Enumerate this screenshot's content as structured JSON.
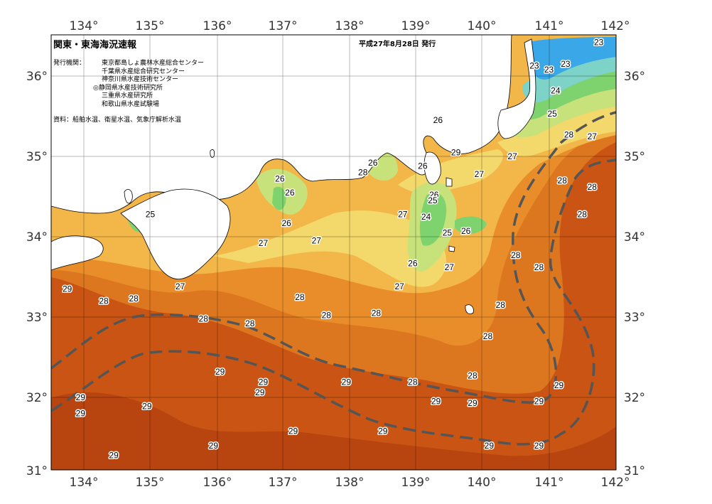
{
  "header": {
    "title": "関東・東海海況速報",
    "issue_date": "平成27年8月28日 発行",
    "issuer_label": "発行機関：",
    "issuers": [
      "東京都島しょ農林水産総合センター",
      "千葉県水産総合研究センター",
      "神奈川県水産技術センター",
      "◎静岡県水産技術研究所",
      "三重県水産研究所",
      "和歌山県水産試験場"
    ],
    "source": "資料：船舶水温、衛星水温、気象庁解析水温"
  },
  "axes": {
    "lon_labels": [
      "134°",
      "135°",
      "136°",
      "137°",
      "138°",
      "139°",
      "140°",
      "141°",
      "142°"
    ],
    "lat_labels": [
      "36°",
      "35°",
      "34°",
      "33°",
      "32°",
      "31°"
    ]
  },
  "colors": {
    "t23": "#3aa7e8",
    "t24": "#7dd3c8",
    "t25": "#7ed36f",
    "t26": "#c7e27a",
    "t27": "#f3d86b",
    "t27b": "#f2b649",
    "t28": "#e88d2a",
    "t28b": "#dc7720",
    "t29": "#c95414",
    "t29b": "#b84410",
    "land": "#ffffff",
    "kuroshio": "#555555"
  },
  "isotherm_labels": [
    {
      "t": "23",
      "lon": 141.75,
      "lat": 36.42
    },
    {
      "t": "23",
      "lon": 140.78,
      "lat": 36.13
    },
    {
      "t": "23",
      "lon": 141.0,
      "lat": 36.08
    },
    {
      "t": "23",
      "lon": 141.25,
      "lat": 36.15
    },
    {
      "t": "24",
      "lon": 141.1,
      "lat": 35.82
    },
    {
      "t": "25",
      "lon": 141.05,
      "lat": 35.53
    },
    {
      "t": "26",
      "lon": 139.33,
      "lat": 35.45
    },
    {
      "t": "28",
      "lon": 141.3,
      "lat": 35.27
    },
    {
      "t": "27",
      "lon": 141.65,
      "lat": 35.25
    },
    {
      "t": "29",
      "lon": 139.6,
      "lat": 35.05
    },
    {
      "t": "27",
      "lon": 140.45,
      "lat": 35.0
    },
    {
      "t": "26",
      "lon": 138.35,
      "lat": 34.92
    },
    {
      "t": "28",
      "lon": 138.2,
      "lat": 34.8
    },
    {
      "t": "26",
      "lon": 139.1,
      "lat": 34.88
    },
    {
      "t": "27",
      "lon": 139.95,
      "lat": 34.78
    },
    {
      "t": "26",
      "lon": 136.95,
      "lat": 34.72
    },
    {
      "t": "26",
      "lon": 137.1,
      "lat": 34.55
    },
    {
      "t": "28",
      "lon": 141.2,
      "lat": 34.7
    },
    {
      "t": "28",
      "lon": 141.65,
      "lat": 34.62
    },
    {
      "t": "26",
      "lon": 139.27,
      "lat": 34.52
    },
    {
      "t": "25",
      "lon": 139.25,
      "lat": 34.45
    },
    {
      "t": "27",
      "lon": 138.8,
      "lat": 34.28
    },
    {
      "t": "24",
      "lon": 139.15,
      "lat": 34.25
    },
    {
      "t": "28",
      "lon": 141.5,
      "lat": 34.28
    },
    {
      "t": "25",
      "lon": 135.0,
      "lat": 34.28
    },
    {
      "t": "26",
      "lon": 137.05,
      "lat": 34.17
    },
    {
      "t": "25",
      "lon": 139.47,
      "lat": 34.05
    },
    {
      "t": "26",
      "lon": 139.75,
      "lat": 34.07
    },
    {
      "t": "27",
      "lon": 136.7,
      "lat": 33.92
    },
    {
      "t": "27",
      "lon": 137.5,
      "lat": 33.95
    },
    {
      "t": "28",
      "lon": 140.5,
      "lat": 33.77
    },
    {
      "t": "26",
      "lon": 138.95,
      "lat": 33.67
    },
    {
      "t": "27",
      "lon": 139.5,
      "lat": 33.62
    },
    {
      "t": "28",
      "lon": 140.85,
      "lat": 33.62
    },
    {
      "t": "27",
      "lon": 138.75,
      "lat": 33.38
    },
    {
      "t": "29",
      "lon": 133.75,
      "lat": 33.35
    },
    {
      "t": "27",
      "lon": 135.45,
      "lat": 33.38
    },
    {
      "t": "28",
      "lon": 137.25,
      "lat": 33.25
    },
    {
      "t": "28",
      "lon": 134.3,
      "lat": 33.2
    },
    {
      "t": "28",
      "lon": 134.75,
      "lat": 33.23
    },
    {
      "t": "28",
      "lon": 140.27,
      "lat": 33.15
    },
    {
      "t": "28",
      "lon": 137.65,
      "lat": 33.02
    },
    {
      "t": "28",
      "lon": 138.4,
      "lat": 33.05
    },
    {
      "t": "28",
      "lon": 135.8,
      "lat": 32.98
    },
    {
      "t": "28",
      "lon": 136.5,
      "lat": 32.92
    },
    {
      "t": "28",
      "lon": 140.08,
      "lat": 32.76
    },
    {
      "t": "29",
      "lon": 136.05,
      "lat": 32.32
    },
    {
      "t": "28",
      "lon": 139.85,
      "lat": 32.27
    },
    {
      "t": "29",
      "lon": 136.7,
      "lat": 32.19
    },
    {
      "t": "29",
      "lon": 137.95,
      "lat": 32.19
    },
    {
      "t": "28",
      "lon": 138.95,
      "lat": 32.19
    },
    {
      "t": "29",
      "lon": 141.15,
      "lat": 32.15
    },
    {
      "t": "29",
      "lon": 136.65,
      "lat": 32.06
    },
    {
      "t": "29",
      "lon": 133.95,
      "lat": 32.0
    },
    {
      "t": "29",
      "lon": 139.3,
      "lat": 31.95
    },
    {
      "t": "29",
      "lon": 139.85,
      "lat": 31.93
    },
    {
      "t": "29",
      "lon": 140.85,
      "lat": 31.95
    },
    {
      "t": "29",
      "lon": 134.95,
      "lat": 31.89
    },
    {
      "t": "29",
      "lon": 133.95,
      "lat": 31.8
    },
    {
      "t": "29",
      "lon": 137.15,
      "lat": 31.58
    },
    {
      "t": "29",
      "lon": 138.5,
      "lat": 31.58
    },
    {
      "t": "29",
      "lon": 135.95,
      "lat": 31.4
    },
    {
      "t": "29",
      "lon": 140.1,
      "lat": 31.4
    },
    {
      "t": "29",
      "lon": 140.85,
      "lat": 31.4
    },
    {
      "t": "29",
      "lon": 134.45,
      "lat": 31.28
    }
  ]
}
